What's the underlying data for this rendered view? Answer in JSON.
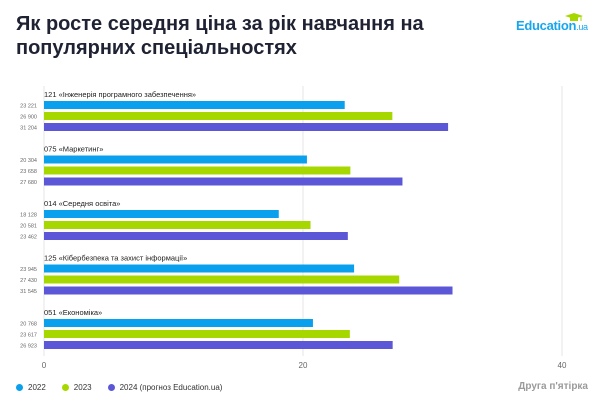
{
  "header": {
    "title": "Як росте середня ціна за рік навчання на популярних спеціальностях",
    "logo_main": "Education",
    "logo_suffix": ".ua"
  },
  "footer": {
    "text": "Друга п'ятірка"
  },
  "colors": {
    "2022": "#0aa0ee",
    "2023": "#a6d800",
    "2024": "#5b57d6"
  },
  "chart_data": {
    "type": "bar",
    "orientation": "horizontal",
    "unit": "thousand UAH",
    "categories": [
      "121 «Інженерія програмного забезпечення»",
      "075 «Маркетинг»",
      "014 «Середня освіта»",
      "125 «Кібербезпека та захист інформації»",
      "051 «Економіка»"
    ],
    "series": [
      {
        "name": "2022",
        "values": [
          23221,
          20304,
          18128,
          23945,
          20768
        ],
        "labels": [
          "23 221",
          "20 304",
          "18 128",
          "23 945",
          "20 768"
        ]
      },
      {
        "name": "2023",
        "values": [
          26900,
          23658,
          20581,
          27430,
          23617
        ],
        "labels": [
          "26 900",
          "23 658",
          "20 581",
          "27 430",
          "23 617"
        ]
      },
      {
        "name": "2024 (прогноз Education.ua)",
        "values": [
          31204,
          27680,
          23462,
          31545,
          26923
        ],
        "labels": [
          "31 204",
          "27 680",
          "23 462",
          "31 545",
          "26 923"
        ]
      }
    ],
    "xticks": [
      "0",
      "20",
      "40"
    ],
    "xlim": [
      0,
      40000
    ],
    "legend_position": "bottom-left",
    "grid": true
  }
}
